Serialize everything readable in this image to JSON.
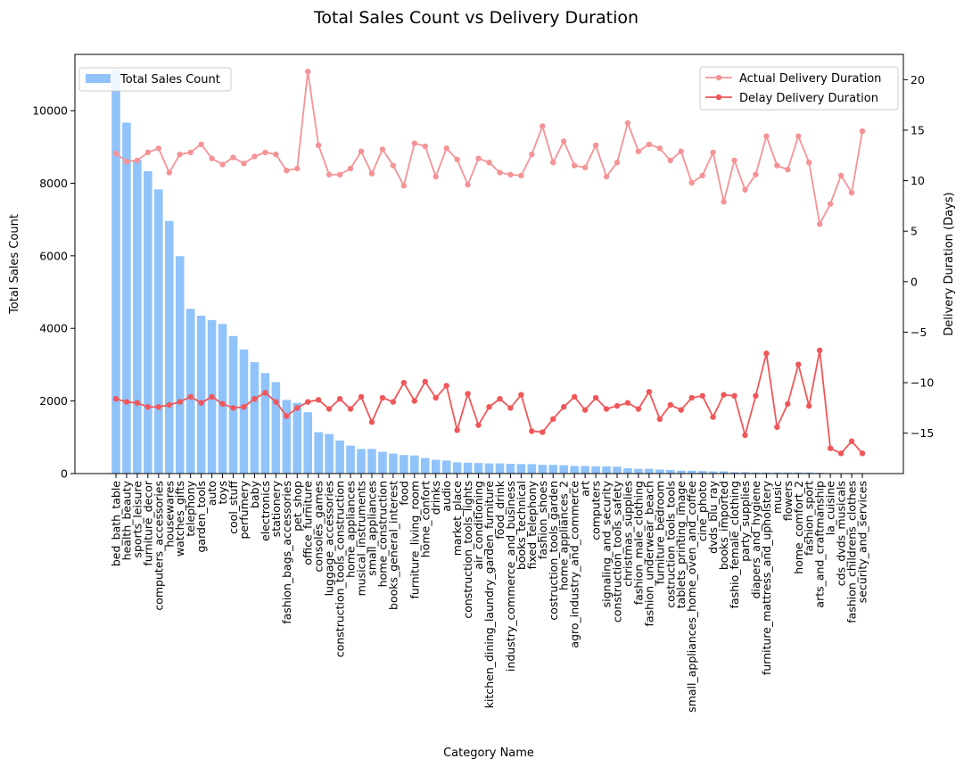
{
  "chart_data": {
    "type": "bar+line",
    "title": "Total Sales Count vs Delivery Duration",
    "xlabel": "Category Name",
    "ylabel_left": "Total Sales Count",
    "ylabel_right": "Delivery Duration (Days)",
    "ylim_left": [
      0,
      11550
    ],
    "ylim_right": [
      -19,
      22.5
    ],
    "yticks_left": [
      0,
      2000,
      4000,
      6000,
      8000,
      10000
    ],
    "yticks_right": [
      -15,
      -10,
      -5,
      0,
      5,
      10,
      15,
      20
    ],
    "legend_left": "upper-left",
    "legend_right": "upper-right",
    "grid": false,
    "colors": {
      "bars": "#90c3f9",
      "actual": "#f59397",
      "delay": "#f0575a",
      "axis": "#000000"
    },
    "categories": [
      "bed_bath_table",
      "health_beauty",
      "sports_leisure",
      "furniture_decor",
      "computers_accessories",
      "housewares",
      "watches_gifts",
      "telephony",
      "garden_tools",
      "auto",
      "toys",
      "cool_stuff",
      "perfumery",
      "baby",
      "electronics",
      "stationery",
      "fashion_bags_accessories",
      "pet_shop",
      "office_furniture",
      "consoles_games",
      "luggage_accessories",
      "construction_tools_construction",
      "home_appliances",
      "musical_instruments",
      "small_appliances",
      "home_construction",
      "books_general_interest",
      "food",
      "furniture_living_room",
      "home_confort",
      "drinks",
      "audio",
      "market_place",
      "construction_tools_lights",
      "air_conditioning",
      "kitchen_dining_laundry_garden_furniture",
      "food_drink",
      "industry_commerce_and_business",
      "books_technical",
      "fixed_telephony",
      "fashion_shoes",
      "costruction_tools_garden",
      "home_appliances_2",
      "agro_industry_and_commerce",
      "art",
      "computers",
      "signaling_and_security",
      "construction_tools_safety",
      "christmas_supplies",
      "fashion_male_clothing",
      "fashion_underwear_beach",
      "furniture_bedroom",
      "costruction_tools_tools",
      "tablets_printing_image",
      "small_appliances_home_oven_and_coffee",
      "cine_photo",
      "dvds_blu_ray",
      "books_imported",
      "fashio_female_clothing",
      "party_supplies",
      "diapers_and_hygiene",
      "furniture_mattress_and_upholstery",
      "music",
      "flowers",
      "home_comfort_2",
      "fashion_sport",
      "arts_and_craftmanship",
      "la_cuisine",
      "cds_dvds_musicals",
      "fashion_childrens_clothes",
      "security_and_services"
    ],
    "series": [
      {
        "name": "Total Sales Count",
        "type": "bar",
        "axis": "left",
        "values": [
          11120,
          9670,
          8640,
          8330,
          7830,
          6960,
          5990,
          4540,
          4350,
          4230,
          4120,
          3790,
          3420,
          3070,
          2770,
          2520,
          2030,
          1950,
          1690,
          1140,
          1090,
          910,
          770,
          680,
          680,
          600,
          550,
          510,
          500,
          430,
          380,
          360,
          310,
          300,
          290,
          280,
          280,
          270,
          260,
          260,
          240,
          240,
          230,
          210,
          210,
          200,
          200,
          190,
          150,
          130,
          130,
          110,
          100,
          80,
          80,
          70,
          60,
          60,
          40,
          40,
          30,
          30,
          30,
          30,
          30,
          30,
          20,
          10,
          10,
          10,
          5
        ]
      },
      {
        "name": "Actual Delivery Duration",
        "type": "line",
        "axis": "right",
        "values": [
          12.7,
          11.9,
          12.0,
          12.8,
          13.2,
          10.8,
          12.6,
          12.8,
          13.6,
          12.2,
          11.6,
          12.3,
          11.7,
          12.4,
          12.8,
          12.6,
          11.0,
          11.2,
          20.8,
          13.5,
          10.6,
          10.6,
          11.2,
          12.9,
          10.7,
          13.1,
          11.5,
          9.5,
          13.7,
          13.4,
          10.4,
          13.2,
          12.1,
          9.6,
          12.2,
          11.8,
          10.8,
          10.6,
          10.5,
          12.6,
          15.4,
          11.8,
          13.9,
          11.5,
          11.3,
          13.5,
          10.4,
          11.8,
          15.7,
          12.9,
          13.6,
          13.2,
          12.0,
          12.9,
          9.8,
          10.5,
          12.8,
          7.9,
          12.0,
          9.1,
          10.6,
          14.4,
          11.5,
          11.1,
          14.4,
          11.8,
          5.7,
          7.7,
          10.5,
          8.8,
          14.9
        ]
      },
      {
        "name": "Delay Delivery Duration",
        "type": "line",
        "axis": "right",
        "values": [
          -11.6,
          -11.9,
          -12.0,
          -12.4,
          -12.4,
          -12.2,
          -11.9,
          -11.4,
          -12.0,
          -11.4,
          -12.1,
          -12.5,
          -12.4,
          -11.6,
          -11.0,
          -11.9,
          -13.3,
          -12.5,
          -11.9,
          -11.7,
          -12.6,
          -11.6,
          -12.6,
          -11.4,
          -13.9,
          -11.5,
          -11.9,
          -10.0,
          -11.8,
          -9.9,
          -11.5,
          -10.3,
          -14.7,
          -11.1,
          -14.2,
          -12.4,
          -11.6,
          -12.5,
          -11.2,
          -14.8,
          -14.9,
          -13.6,
          -12.4,
          -11.4,
          -12.7,
          -11.5,
          -12.6,
          -12.3,
          -12.0,
          -12.6,
          -10.9,
          -13.6,
          -12.2,
          -12.7,
          -11.5,
          -11.3,
          -13.4,
          -11.2,
          -11.3,
          -15.2,
          -11.3,
          -7.1,
          -14.4,
          -12.1,
          -8.2,
          -12.3,
          -6.8,
          -16.5,
          -17.0,
          -15.8,
          -17.0
        ]
      }
    ]
  }
}
